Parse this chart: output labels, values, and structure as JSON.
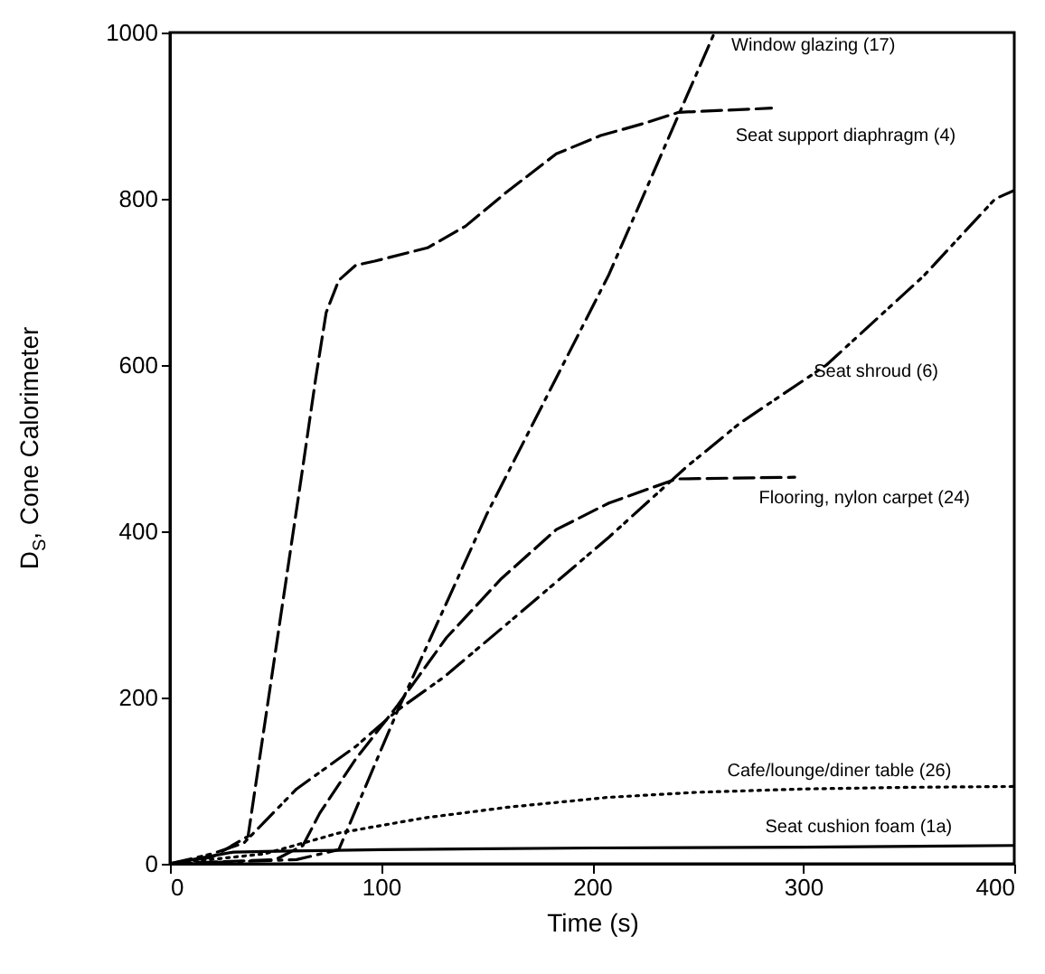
{
  "chart_data": {
    "type": "line",
    "xlabel": "Time (s)",
    "ylabel": "D$_{S}$, Cone Calorimeter",
    "xlim": [
      0,
      400
    ],
    "ylim": [
      0,
      1000
    ],
    "xticks": [
      0,
      100,
      200,
      300,
      400
    ],
    "yticks": [
      0,
      200,
      400,
      600,
      800,
      1000
    ],
    "grid": false,
    "marker": "none",
    "series": [
      {
        "name": "Window glazing (17)",
        "color": "#000000",
        "line_style": "dashdot",
        "x": [
          0,
          60,
          80,
          108,
          150,
          208,
          258
        ],
        "values": [
          0,
          5,
          17,
          185,
          420,
          709,
          1000
        ]
      },
      {
        "name": "Seat support diaphragm (4)",
        "color": "#000000",
        "line_style": "dashed",
        "x": [
          0,
          20,
          37,
          63,
          69,
          74,
          80,
          88,
          97,
          122,
          140,
          159,
          183,
          204,
          225,
          241,
          285
        ],
        "values": [
          0,
          8,
          33,
          478,
          583,
          663,
          702,
          720,
          725,
          741,
          767,
          807,
          854,
          876,
          891,
          904,
          909
        ]
      },
      {
        "name": "Seat shroud (6)",
        "color": "#000000",
        "line_style": "dashdotdot",
        "x": [
          0,
          20,
          35,
          60,
          88,
          108,
          130,
          165,
          208,
          245,
          270,
          311,
          357,
          391,
          400
        ],
        "values": [
          0,
          12,
          25,
          90,
          141,
          185,
          225,
          300,
          393,
          478,
          530,
          600,
          707,
          800,
          810
        ]
      },
      {
        "name": "Flooring, nylon carpet (24)",
        "color": "#000000",
        "line_style": "dashed",
        "x": [
          0,
          50,
          63,
          71,
          88,
          108,
          131,
          157,
          183,
          208,
          240,
          296
        ],
        "values": [
          0,
          5,
          22,
          61,
          126,
          191,
          272,
          343,
          402,
          434,
          463,
          465
        ]
      },
      {
        "name": "Cafe/lounge/diner table (26)",
        "color": "#000000",
        "line_style": "dotted",
        "x": [
          0,
          45,
          80,
          120,
          160,
          208,
          250,
          300,
          350,
          400
        ],
        "values": [
          0,
          12,
          37,
          55,
          68,
          80,
          86,
          90,
          92,
          93
        ]
      },
      {
        "name": "Seat cushion foam (1a)",
        "color": "#000000",
        "line_style": "solid",
        "x": [
          0,
          30,
          50,
          100,
          200,
          300,
          400
        ],
        "values": [
          0,
          14,
          15,
          17,
          19,
          20,
          22
        ]
      }
    ]
  }
}
